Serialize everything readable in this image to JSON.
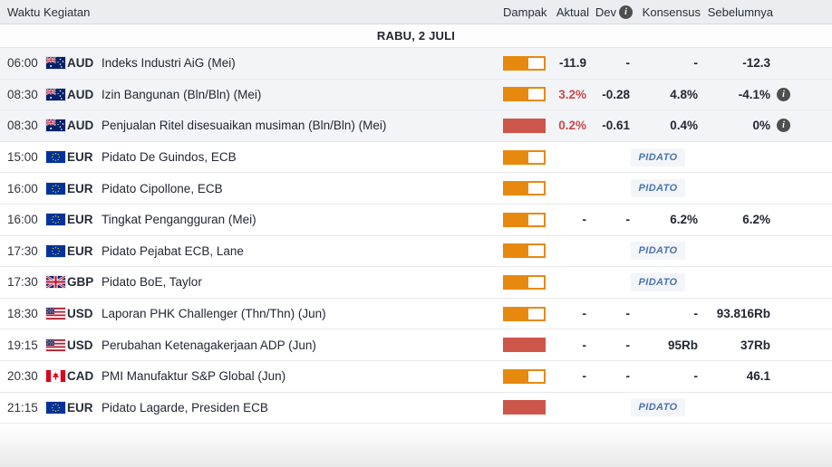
{
  "header": {
    "waktu": "Waktu",
    "kegiatan": "Kegiatan",
    "dampak": "Dampak",
    "aktual": "Aktual",
    "dev": "Dev",
    "konsensus": "Konsensus",
    "sebelumnya": "Sebelumnya"
  },
  "date_header": "RABU, 2 JULI",
  "badge_label": "PIDATO",
  "colors": {
    "impact_medium_orange": "#e8890f",
    "impact_high_red": "#cd564a",
    "actual_worse_red": "#cb4948",
    "badge_blue": "#4a74b2",
    "badge_bg": "#f3f5f8",
    "header_bg": "#ebedf0",
    "past_row_bg": "#f2f4f7",
    "info_icon_bg": "#4f4f4f"
  },
  "rows": [
    {
      "time": "06:00",
      "currency": "AUD",
      "event": "Indeks Industri AiG (Mei)",
      "impact": "medium",
      "past": true,
      "pidato": false,
      "aktual": "-11.9",
      "aktual_red": false,
      "dev": "-",
      "konsensus": "-",
      "sebelumnya": "-12.3",
      "sebelumnya_info": false
    },
    {
      "time": "08:30",
      "currency": "AUD",
      "event": "Izin Bangunan (Bln/Bln) (Mei)",
      "impact": "medium",
      "past": true,
      "pidato": false,
      "aktual": "3.2%",
      "aktual_red": true,
      "dev": "-0.28",
      "konsensus": "4.8%",
      "sebelumnya": "-4.1%",
      "sebelumnya_info": true
    },
    {
      "time": "08:30",
      "currency": "AUD",
      "event": "Penjualan Ritel disesuaikan musiman (Bln/Bln) (Mei)",
      "impact": "high",
      "past": true,
      "pidato": false,
      "aktual": "0.2%",
      "aktual_red": true,
      "dev": "-0.61",
      "konsensus": "0.4%",
      "sebelumnya": "0%",
      "sebelumnya_info": true
    },
    {
      "time": "15:00",
      "currency": "EUR",
      "event": "Pidato De Guindos, ECB",
      "impact": "medium",
      "past": false,
      "pidato": true
    },
    {
      "time": "16:00",
      "currency": "EUR",
      "event": "Pidato Cipollone, ECB",
      "impact": "medium",
      "past": false,
      "pidato": true
    },
    {
      "time": "16:00",
      "currency": "EUR",
      "event": "Tingkat Pengangguran (Mei)",
      "impact": "medium",
      "past": false,
      "pidato": false,
      "aktual": "-",
      "aktual_red": false,
      "dev": "-",
      "konsensus": "6.2%",
      "sebelumnya": "6.2%",
      "sebelumnya_info": false
    },
    {
      "time": "17:30",
      "currency": "EUR",
      "event": "Pidato Pejabat ECB, Lane",
      "impact": "medium",
      "past": false,
      "pidato": true
    },
    {
      "time": "17:30",
      "currency": "GBP",
      "event": "Pidato BoE, Taylor",
      "impact": "medium",
      "past": false,
      "pidato": true
    },
    {
      "time": "18:30",
      "currency": "USD",
      "event": "Laporan PHK Challenger (Thn/Thn) (Jun)",
      "impact": "medium",
      "past": false,
      "pidato": false,
      "aktual": "-",
      "aktual_red": false,
      "dev": "-",
      "konsensus": "-",
      "sebelumnya": "93.816Rb",
      "sebelumnya_info": false
    },
    {
      "time": "19:15",
      "currency": "USD",
      "event": "Perubahan Ketenagakerjaan ADP (Jun)",
      "impact": "high",
      "past": false,
      "pidato": false,
      "aktual": "-",
      "aktual_red": false,
      "dev": "-",
      "konsensus": "95Rb",
      "sebelumnya": "37Rb",
      "sebelumnya_info": false
    },
    {
      "time": "20:30",
      "currency": "CAD",
      "event": "PMI Manufaktur S&P Global (Jun)",
      "impact": "medium",
      "past": false,
      "pidato": false,
      "aktual": "-",
      "aktual_red": false,
      "dev": "-",
      "konsensus": "-",
      "sebelumnya": "46.1",
      "sebelumnya_info": false
    },
    {
      "time": "21:15",
      "currency": "EUR",
      "event": "Pidato Lagarde, Presiden ECB",
      "impact": "high",
      "past": false,
      "pidato": true
    }
  ]
}
